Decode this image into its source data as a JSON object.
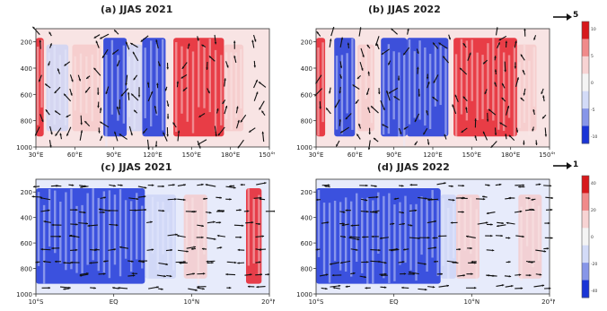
{
  "colors": {
    "red_strong": "#e5202a",
    "red_light": "#f6c7c7",
    "blue_strong": "#1c36d8",
    "blue_light": "#c9d2f6",
    "arrow": "#111111"
  },
  "chart_data": [
    {
      "type": "heatmap",
      "title": "(a) JJAS 2021",
      "x_ticks": [
        "30°E",
        "60°E",
        "90°E",
        "120°E",
        "150°E",
        "180°E",
        "150°W"
      ],
      "y_ticks": [
        "200",
        "400",
        "600",
        "800",
        "1000"
      ],
      "ylim": [
        1000,
        100
      ],
      "reference_vector": "5",
      "colorbar_ticks": [
        "10",
        "5",
        "0",
        "-5",
        "-10"
      ],
      "anomaly_bands": [
        {
          "x0": 30,
          "x1": 36,
          "sign": 1,
          "strength": 2
        },
        {
          "x0": 38,
          "x1": 55,
          "sign": -1,
          "strength": 1
        },
        {
          "x0": 58,
          "x1": 80,
          "sign": 1,
          "strength": 1
        },
        {
          "x0": 82,
          "x1": 100,
          "sign": -1,
          "strength": 2
        },
        {
          "x0": 100,
          "x1": 112,
          "sign": -1,
          "strength": 1
        },
        {
          "x0": 112,
          "x1": 130,
          "sign": -1,
          "strength": 2
        },
        {
          "x0": 136,
          "x1": 175,
          "sign": 1,
          "strength": 2
        },
        {
          "x0": 175,
          "x1": 190,
          "sign": 1,
          "strength": 1
        }
      ]
    },
    {
      "type": "heatmap",
      "title": "(b) JJAS 2022",
      "x_ticks": [
        "30°E",
        "60°E",
        "90°E",
        "120°E",
        "150°E",
        "180°E",
        "150°W"
      ],
      "y_ticks": [
        "200",
        "400",
        "600",
        "800",
        "1000"
      ],
      "ylim": [
        1000,
        100
      ],
      "reference_vector": "5",
      "colorbar_ticks": [
        "10",
        "5",
        "0",
        "-5",
        "-10"
      ],
      "anomaly_bands": [
        {
          "x0": 30,
          "x1": 37,
          "sign": 1,
          "strength": 2
        },
        {
          "x0": 44,
          "x1": 60,
          "sign": -1,
          "strength": 2
        },
        {
          "x0": 62,
          "x1": 75,
          "sign": 1,
          "strength": 1
        },
        {
          "x0": 80,
          "x1": 100,
          "sign": -1,
          "strength": 2
        },
        {
          "x0": 100,
          "x1": 132,
          "sign": -1,
          "strength": 2
        },
        {
          "x0": 136,
          "x1": 185,
          "sign": 1,
          "strength": 2
        },
        {
          "x0": 185,
          "x1": 200,
          "sign": 1,
          "strength": 1
        }
      ]
    },
    {
      "type": "heatmap",
      "title": "(c) JJAS 2021",
      "x_ticks": [
        "10°S",
        "EQ",
        "10°N",
        "20°N"
      ],
      "y_ticks": [
        "200",
        "400",
        "600",
        "800",
        "1000"
      ],
      "ylim": [
        1000,
        100
      ],
      "reference_vector": "1",
      "colorbar_ticks": [
        "40",
        "20",
        "0",
        "-20",
        "-40"
      ],
      "anomaly_bands": [
        {
          "x0": -10,
          "x1": 4,
          "sign": -1,
          "strength": 2
        },
        {
          "x0": 4,
          "x1": 8,
          "sign": -1,
          "strength": 1
        },
        {
          "x0": 9,
          "x1": 12,
          "sign": 1,
          "strength": 1
        },
        {
          "x0": 17,
          "x1": 19,
          "sign": 1,
          "strength": 2
        }
      ]
    },
    {
      "type": "heatmap",
      "title": "(d) JJAS 2022",
      "x_ticks": [
        "10°S",
        "EQ",
        "10°N",
        "20°N"
      ],
      "y_ticks": [
        "200",
        "400",
        "600",
        "800",
        "1000"
      ],
      "ylim": [
        1000,
        100
      ],
      "reference_vector": "1",
      "colorbar_ticks": [
        "40",
        "20",
        "0",
        "-20",
        "-40"
      ],
      "anomaly_bands": [
        {
          "x0": -10,
          "x1": 6,
          "sign": -1,
          "strength": 2
        },
        {
          "x0": 6,
          "x1": 8,
          "sign": -1,
          "strength": 1
        },
        {
          "x0": 8,
          "x1": 11,
          "sign": 1,
          "strength": 1
        },
        {
          "x0": 16,
          "x1": 19,
          "sign": 1,
          "strength": 1
        }
      ]
    }
  ]
}
